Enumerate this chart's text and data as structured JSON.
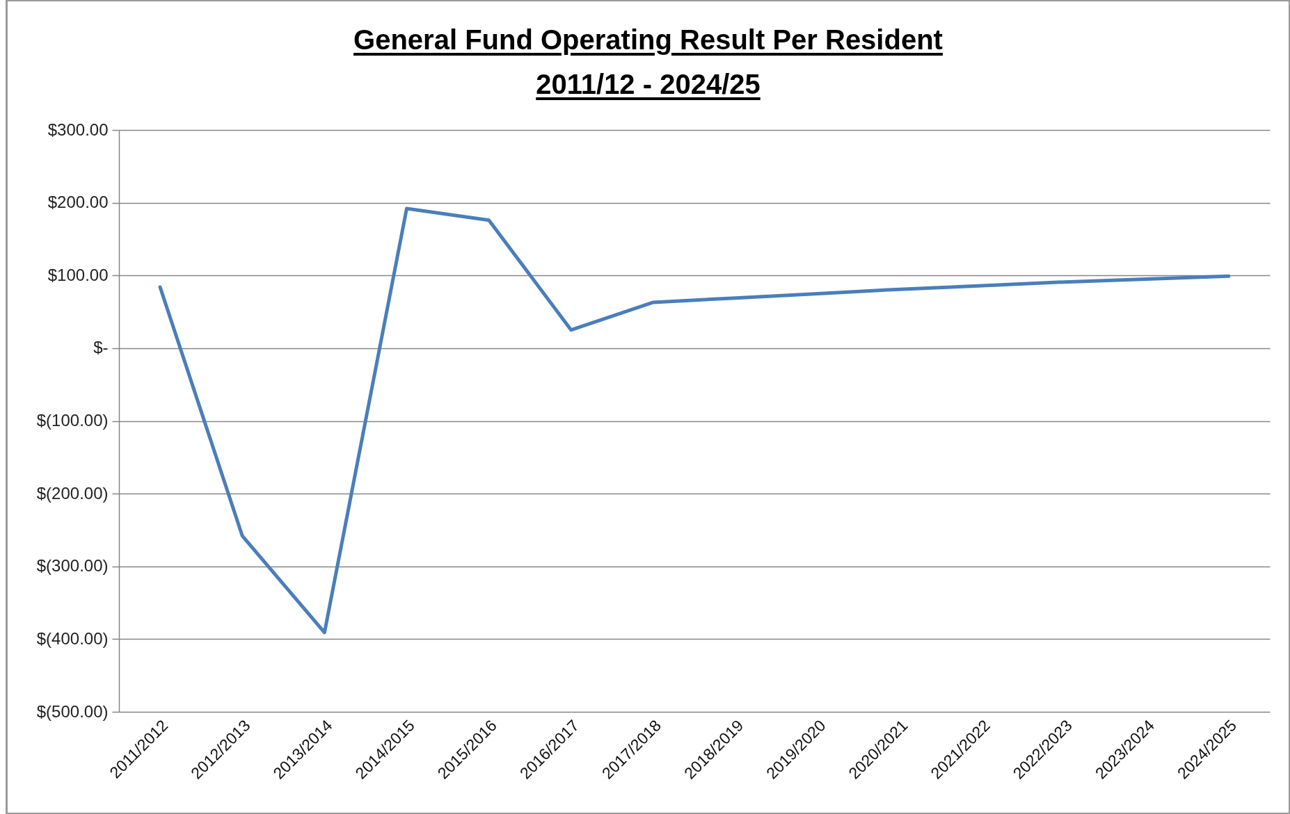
{
  "chart_data": {
    "type": "line",
    "title": "General Fund Operating Result Per Resident",
    "subtitle": "2011/12 - 2024/25",
    "categories": [
      "2011/2012",
      "2012/2013",
      "2013/2014",
      "2014/2015",
      "2015/2016",
      "2016/2017",
      "2017/2018",
      "2018/2019",
      "2019/2020",
      "2020/2021",
      "2021/2022",
      "2022/2023",
      "2023/2024",
      "2024/2025"
    ],
    "values": [
      84,
      -258,
      -391,
      192,
      176,
      25,
      63,
      69,
      75,
      81,
      86,
      91,
      95,
      99
    ],
    "color": "#4a7ebb",
    "ylim": [
      -500,
      300
    ],
    "yticks": [
      {
        "value": -500,
        "label": "$(500.00)"
      },
      {
        "value": -400,
        "label": "$(400.00)"
      },
      {
        "value": -300,
        "label": "$(300.00)"
      },
      {
        "value": -200,
        "label": "$(200.00)"
      },
      {
        "value": -100,
        "label": "$(100.00)"
      },
      {
        "value": 0,
        "label": "$-"
      },
      {
        "value": 100,
        "label": "$100.00"
      },
      {
        "value": 200,
        "label": "$200.00"
      },
      {
        "value": 300,
        "label": "$300.00"
      }
    ],
    "grid": "y",
    "line_style": "solid"
  }
}
